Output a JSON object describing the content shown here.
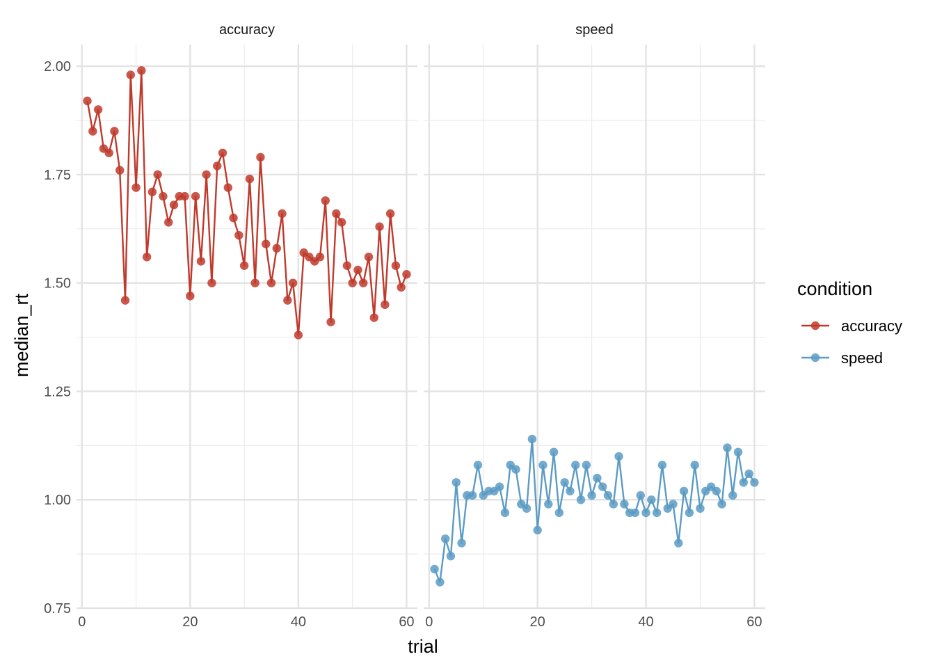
{
  "chart_data": {
    "type": "line",
    "xlabel": "trial",
    "ylabel": "median_rt",
    "xlim": [
      -1,
      62
    ],
    "ylim": [
      0.75,
      2.05
    ],
    "x_ticks": [
      0,
      20,
      40,
      60
    ],
    "y_ticks": [
      0.75,
      1.0,
      1.25,
      1.5,
      1.75,
      2.0
    ],
    "y_tick_labels": [
      "0.75",
      "1.00",
      "1.25",
      "1.50",
      "1.75",
      "2.00"
    ],
    "x_tick_labels": [
      "0",
      "20",
      "40",
      "60"
    ],
    "grid": true,
    "legend_title": "condition",
    "legend_position": "right",
    "facets": [
      "accuracy",
      "speed"
    ],
    "series": [
      {
        "name": "accuracy",
        "facet": "accuracy",
        "color": "#c0392b",
        "x": [
          1,
          2,
          3,
          4,
          5,
          6,
          7,
          8,
          9,
          10,
          11,
          12,
          13,
          14,
          15,
          16,
          17,
          18,
          19,
          20,
          21,
          22,
          23,
          24,
          25,
          26,
          27,
          28,
          29,
          30,
          31,
          32,
          33,
          34,
          35,
          36,
          37,
          38,
          39,
          40,
          41,
          42,
          43,
          44,
          45,
          46,
          47,
          48,
          49,
          50,
          51,
          52,
          53,
          54,
          55,
          56,
          57,
          58,
          59,
          60
        ],
        "values": [
          1.92,
          1.85,
          1.9,
          1.81,
          1.8,
          1.85,
          1.76,
          1.46,
          1.98,
          1.72,
          1.99,
          1.56,
          1.71,
          1.75,
          1.7,
          1.64,
          1.68,
          1.7,
          1.7,
          1.47,
          1.7,
          1.55,
          1.75,
          1.5,
          1.77,
          1.8,
          1.72,
          1.65,
          1.61,
          1.54,
          1.74,
          1.5,
          1.79,
          1.59,
          1.5,
          1.58,
          1.66,
          1.46,
          1.5,
          1.38,
          1.57,
          1.56,
          1.55,
          1.56,
          1.69,
          1.41,
          1.66,
          1.64,
          1.54,
          1.5,
          1.53,
          1.5,
          1.56,
          1.42,
          1.63,
          1.45,
          1.66,
          1.54,
          1.49,
          1.52
        ]
      },
      {
        "name": "speed",
        "facet": "speed",
        "color": "#5b9bc4",
        "x": [
          1,
          2,
          3,
          4,
          5,
          6,
          7,
          8,
          9,
          10,
          11,
          12,
          13,
          14,
          15,
          16,
          17,
          18,
          19,
          20,
          21,
          22,
          23,
          24,
          25,
          26,
          27,
          28,
          29,
          30,
          31,
          32,
          33,
          34,
          35,
          36,
          37,
          38,
          39,
          40,
          41,
          42,
          43,
          44,
          45,
          46,
          47,
          48,
          49,
          50,
          51,
          52,
          53,
          54,
          55,
          56,
          57,
          58,
          59,
          60
        ],
        "values": [
          0.84,
          0.81,
          0.91,
          0.87,
          1.04,
          0.9,
          1.01,
          1.01,
          1.08,
          1.01,
          1.02,
          1.02,
          1.03,
          0.97,
          1.08,
          1.07,
          0.99,
          0.98,
          1.14,
          0.93,
          1.08,
          0.99,
          1.11,
          0.97,
          1.04,
          1.02,
          1.08,
          1.0,
          1.08,
          1.01,
          1.05,
          1.03,
          1.01,
          0.99,
          1.1,
          0.99,
          0.97,
          0.97,
          1.01,
          0.97,
          1.0,
          0.97,
          1.08,
          0.98,
          0.99,
          0.9,
          1.02,
          0.97,
          1.08,
          0.98,
          1.02,
          1.03,
          1.02,
          0.99,
          1.12,
          1.01,
          1.11,
          1.04,
          1.06,
          1.04
        ]
      }
    ]
  }
}
